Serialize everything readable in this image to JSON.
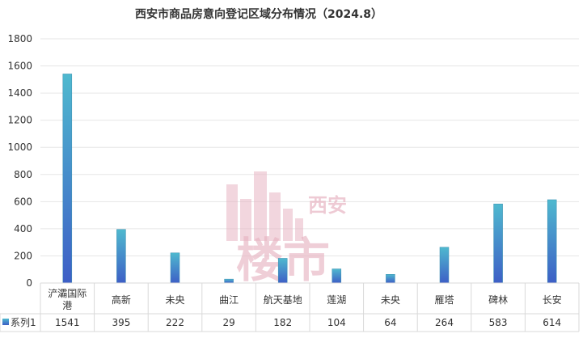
{
  "chart_data": {
    "type": "bar",
    "title": "西安市商品房意向登记区域分布情况（2024.8）",
    "categories": [
      "浐灞国际港",
      "高新",
      "未央",
      "曲江",
      "航天基地",
      "莲湖",
      "未央",
      "雁塔",
      "碑林",
      "长安"
    ],
    "series": [
      {
        "name": "系列1",
        "values": [
          1541,
          395,
          222,
          29,
          182,
          104,
          64,
          264,
          583,
          614
        ]
      }
    ],
    "ylim": [
      0,
      1800
    ],
    "yticks": [
      0,
      200,
      400,
      600,
      800,
      1000,
      1200,
      1400,
      1600,
      1800
    ],
    "grid": true,
    "legend": "data-table-left",
    "data_table": true,
    "colors": {
      "bar_top": "#4fb9cf",
      "bar_bottom": "#3d5fc6",
      "grid": "#e6e6e6",
      "axis_text": "#333333",
      "watermark": "#e8b4c2"
    }
  },
  "watermark": {
    "brand_text": "楼市",
    "city_text": "西安"
  }
}
